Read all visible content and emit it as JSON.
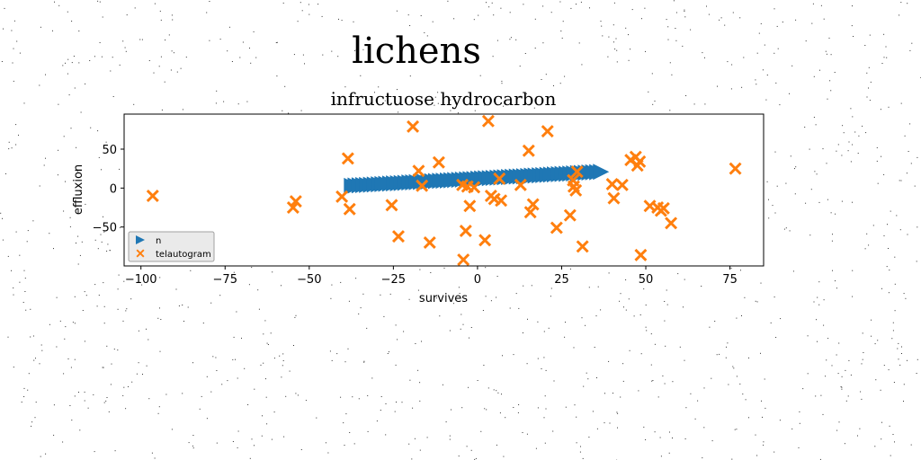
{
  "figure": {
    "title": "lichens"
  },
  "colors": {
    "series_triangle": "#1f77b4",
    "series_x": "#ff7f0e"
  },
  "chart_data": {
    "type": "scatter",
    "title": "infructuose hydrocarbon",
    "xlabel": "survives",
    "ylabel": "effluxion",
    "xlim": [
      -105,
      85
    ],
    "ylim": [
      -100,
      95
    ],
    "xticks": [
      -100,
      -75,
      -50,
      -25,
      0,
      25,
      50,
      75
    ],
    "yticks": [
      -50,
      0,
      50
    ],
    "xtick_labels": [
      "−100",
      "−75",
      "−50",
      "−25",
      "0",
      "25",
      "50",
      "75"
    ],
    "ytick_labels": [
      "−50",
      "0",
      "50"
    ],
    "grid": false,
    "legend_position": "lower-left",
    "series": [
      {
        "name": "n",
        "marker": "triangle-right",
        "color": "#1f77b4",
        "x": [
          -37.3,
          -36.2,
          -35.0,
          -33.9,
          -32.8,
          -31.6,
          -30.5,
          -29.3,
          -28.2,
          -27.1,
          -25.9,
          -24.8,
          -23.6,
          -22.5,
          -21.4,
          -20.2,
          -19.1,
          -18.0,
          -16.8,
          -15.7,
          -14.5,
          -13.4,
          -12.3,
          -11.1,
          -10.0,
          -8.8,
          -7.7,
          -6.6,
          -5.4,
          -4.3,
          -3.1,
          -2.0,
          -0.9,
          0.3,
          1.4,
          2.5,
          3.7,
          4.8,
          6.0,
          7.1,
          8.2,
          9.4,
          10.5,
          11.7,
          12.8,
          13.9,
          15.1,
          16.2,
          17.3,
          18.5,
          19.6,
          20.8,
          21.9,
          23.0,
          24.2,
          25.3,
          26.5,
          27.6,
          28.7,
          29.9,
          31.0,
          32.2,
          33.3,
          34.4,
          35.6,
          36.7
        ],
        "y": [
          2.9,
          3.2,
          3.5,
          3.8,
          4.0,
          4.3,
          4.6,
          4.9,
          5.1,
          5.4,
          5.7,
          6.0,
          6.2,
          6.5,
          6.8,
          7.1,
          7.3,
          7.6,
          7.9,
          8.2,
          8.4,
          8.7,
          9.0,
          9.3,
          9.5,
          9.8,
          10.1,
          10.4,
          10.6,
          10.9,
          11.2,
          11.5,
          11.7,
          12.0,
          12.3,
          12.6,
          12.8,
          13.1,
          13.4,
          13.7,
          13.9,
          14.2,
          14.5,
          14.8,
          15.0,
          15.3,
          15.6,
          15.9,
          16.1,
          16.4,
          16.7,
          17.0,
          17.2,
          17.5,
          17.8,
          18.1,
          18.3,
          18.6,
          18.9,
          19.2,
          19.4,
          19.7,
          20.0,
          20.3,
          20.5,
          20.8
        ]
      },
      {
        "name": "telautogram",
        "marker": "x-filled",
        "color": "#ff7f0e",
        "x": [
          -96.5,
          -54.8,
          -54.0,
          -38.5,
          -38.0,
          -40.3,
          -25.5,
          -23.5,
          -19.2,
          -17.5,
          -16.5,
          -14.2,
          -11.5,
          -4.5,
          -4.2,
          -3.5,
          -3.0,
          -2.3,
          -1.0,
          2.2,
          3.2,
          4.0,
          5.0,
          6.5,
          7.0,
          12.8,
          15.2,
          15.7,
          16.5,
          20.8,
          23.5,
          27.5,
          28.4,
          28.6,
          29.2,
          29.6,
          31.2,
          40.0,
          40.5,
          43.0,
          45.5,
          47.0,
          47.5,
          48.2,
          48.5,
          51.2,
          53.5,
          54.5,
          55.3,
          57.5,
          76.6
        ],
        "y": [
          -10,
          -25,
          -17,
          38,
          -27,
          -11,
          -22,
          -62,
          79,
          22,
          3,
          -70,
          33,
          4,
          -92,
          -55,
          2,
          -23,
          1,
          -67,
          86,
          -10,
          -14,
          12,
          -16,
          4,
          48,
          -31,
          -21,
          73,
          -51,
          -35,
          10,
          2,
          -3,
          21,
          -75,
          5,
          -13,
          4,
          36,
          40,
          29,
          34,
          -86,
          -23,
          -25,
          -29,
          -26,
          -45,
          25
        ]
      }
    ]
  }
}
